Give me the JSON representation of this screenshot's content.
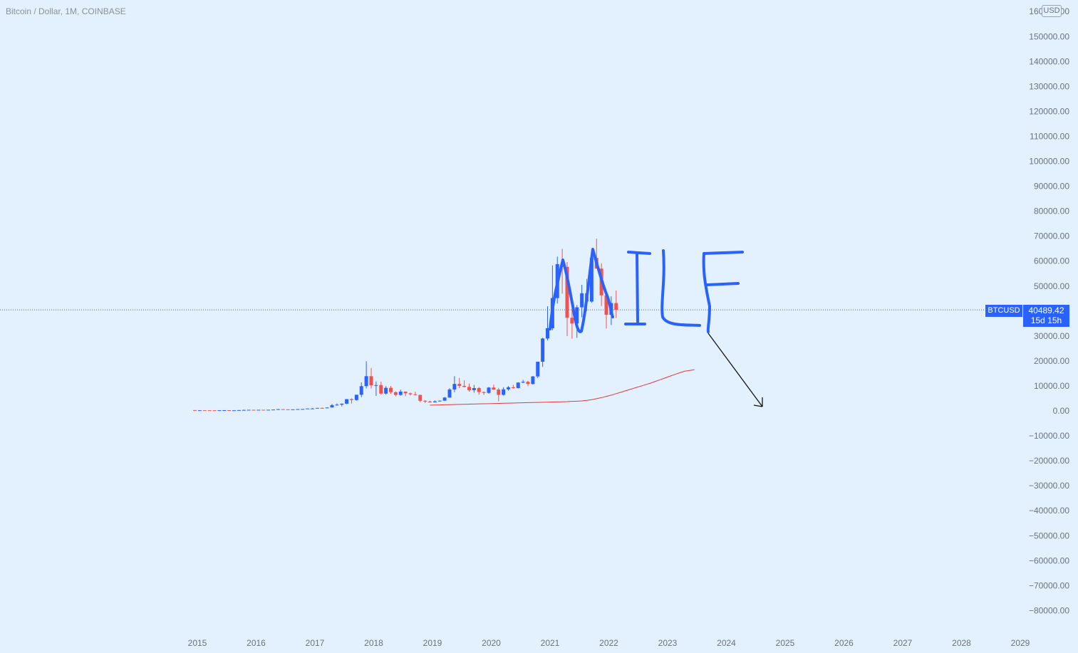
{
  "header": {
    "title": "Bitcoin / Dollar, 1M, COINBASE",
    "currency": "USD"
  },
  "price_tag": {
    "symbol": "BTCUSD",
    "price": "40489.42",
    "countdown": "15d 15h"
  },
  "colors": {
    "up": "#2962ff",
    "down": "#ef5350",
    "ma": "#e53935",
    "drawing": "#2962ff",
    "arrow": "#111111",
    "background": "#e3f0fe"
  },
  "chart_data": {
    "type": "candlestick",
    "title": "Bitcoin / Dollar, 1M, COINBASE",
    "currency": "USD",
    "y_tick_labels": [
      "160000.00",
      "150000.00",
      "140000.00",
      "130000.00",
      "120000.00",
      "110000.00",
      "100000.00",
      "90000.00",
      "80000.00",
      "70000.00",
      "60000.00",
      "50000.00",
      "40000.00",
      "30000.00",
      "20000.00",
      "10000.00",
      "0.00",
      "−10000.00",
      "−20000.00",
      "−30000.00",
      "−40000.00",
      "−50000.00",
      "−60000.00",
      "−70000.00",
      "−80000.00"
    ],
    "x_tick_labels": [
      "2015",
      "2016",
      "2017",
      "2018",
      "2019",
      "2020",
      "2021",
      "2022",
      "2023",
      "2024",
      "2025",
      "2026",
      "2027",
      "2028",
      "2029"
    ],
    "ylim": [
      -89000,
      161000
    ],
    "last_price": 40489.42,
    "series": [
      {
        "name": "BTCUSD",
        "start": "2015-01",
        "ohlc": [
          [
            315,
            320,
            200,
            218
          ],
          [
            218,
            260,
            210,
            254
          ],
          [
            254,
            300,
            240,
            244
          ],
          [
            244,
            260,
            220,
            236
          ],
          [
            236,
            245,
            225,
            230
          ],
          [
            230,
            265,
            220,
            263
          ],
          [
            263,
            315,
            255,
            284
          ],
          [
            284,
            285,
            210,
            230
          ],
          [
            230,
            245,
            225,
            236
          ],
          [
            236,
            330,
            235,
            314
          ],
          [
            314,
            495,
            310,
            378
          ],
          [
            378,
            465,
            355,
            430
          ],
          [
            430,
            460,
            350,
            368
          ],
          [
            368,
            440,
            365,
            437
          ],
          [
            437,
            425,
            400,
            416
          ],
          [
            416,
            466,
            415,
            448
          ],
          [
            448,
            535,
            440,
            531
          ],
          [
            531,
            780,
            520,
            673
          ],
          [
            673,
            675,
            580,
            624
          ],
          [
            624,
            615,
            550,
            575
          ],
          [
            575,
            610,
            595,
            609
          ],
          [
            609,
            740,
            605,
            700
          ],
          [
            700,
            745,
            690,
            742
          ],
          [
            742,
            970,
            740,
            963
          ],
          [
            963,
            1150,
            750,
            970
          ],
          [
            970,
            1200,
            950,
            1190
          ],
          [
            1190,
            1330,
            890,
            1080
          ],
          [
            1080,
            1430,
            1060,
            1350
          ],
          [
            1350,
            2780,
            1340,
            2300
          ],
          [
            2300,
            3000,
            2100,
            2480
          ],
          [
            2480,
            2950,
            1830,
            2880
          ],
          [
            2880,
            4750,
            2700,
            4700
          ],
          [
            4700,
            4980,
            2950,
            4340
          ],
          [
            4340,
            6470,
            4100,
            6450
          ],
          [
            6450,
            11400,
            5500,
            9900
          ],
          [
            9900,
            19900,
            9000,
            13900
          ],
          [
            13900,
            17200,
            9000,
            10220
          ],
          [
            10220,
            11800,
            6000,
            10330
          ],
          [
            10330,
            11700,
            6450,
            6930
          ],
          [
            6930,
            9950,
            6500,
            9240
          ],
          [
            9240,
            10000,
            6900,
            7500
          ],
          [
            7500,
            7800,
            5800,
            6390
          ],
          [
            6390,
            8500,
            6100,
            7730
          ],
          [
            7730,
            7770,
            5880,
            7030
          ],
          [
            7030,
            7400,
            6150,
            6630
          ],
          [
            6630,
            7650,
            6200,
            6370
          ],
          [
            6370,
            6550,
            3450,
            4040
          ],
          [
            4040,
            4300,
            3200,
            3740
          ],
          [
            3740,
            4050,
            3350,
            3440
          ],
          [
            3440,
            4200,
            3390,
            3810
          ],
          [
            3810,
            4100,
            3700,
            4100
          ],
          [
            4100,
            5600,
            4050,
            5320
          ],
          [
            5320,
            9100,
            5320,
            8570
          ],
          [
            8570,
            13900,
            7500,
            10800
          ],
          [
            10800,
            13200,
            9100,
            10000
          ],
          [
            10000,
            12300,
            9400,
            9600
          ],
          [
            9600,
            10950,
            7700,
            8300
          ],
          [
            8300,
            10400,
            7300,
            9150
          ],
          [
            9150,
            9500,
            6500,
            7550
          ],
          [
            7550,
            7750,
            6430,
            7200
          ],
          [
            7200,
            9600,
            6850,
            9350
          ],
          [
            9350,
            10500,
            8450,
            8550
          ],
          [
            8550,
            9200,
            3850,
            6420
          ],
          [
            6420,
            9450,
            6150,
            8630
          ],
          [
            8630,
            10000,
            8100,
            9450
          ],
          [
            9450,
            10400,
            8900,
            9140
          ],
          [
            9140,
            11500,
            9000,
            11350
          ],
          [
            11350,
            12470,
            11100,
            11650
          ],
          [
            11650,
            12050,
            9870,
            10780
          ],
          [
            10780,
            14000,
            10550,
            13800
          ],
          [
            13800,
            19500,
            13200,
            19700
          ],
          [
            19700,
            29300,
            17600,
            29000
          ],
          [
            29000,
            41900,
            28200,
            33100
          ],
          [
            33100,
            58300,
            32300,
            45200
          ],
          [
            45200,
            61800,
            43000,
            58800
          ],
          [
            58800,
            64900,
            47000,
            57700
          ],
          [
            57700,
            59600,
            30000,
            37300
          ],
          [
            37300,
            41300,
            28900,
            35000
          ],
          [
            35000,
            42400,
            29300,
            41500
          ],
          [
            41500,
            50500,
            37500,
            47100
          ],
          [
            47100,
            52900,
            40000,
            43800
          ],
          [
            43800,
            62000,
            43300,
            61300
          ],
          [
            61300,
            69000,
            58800,
            57000
          ],
          [
            57000,
            59100,
            42000,
            46300
          ],
          [
            46300,
            48000,
            33000,
            38500
          ],
          [
            38500,
            45900,
            34400,
            43200
          ],
          [
            43200,
            48200,
            37200,
            40489
          ]
        ]
      },
      {
        "name": "MA",
        "start": "2019-01",
        "values": [
          2300,
          2350,
          2400,
          2450,
          2500,
          2550,
          2600,
          2650,
          2700,
          2750,
          2800,
          2850,
          2900,
          2950,
          3000,
          3050,
          3100,
          3150,
          3200,
          3250,
          3300,
          3350,
          3400,
          3450,
          3500,
          3550,
          3600,
          3650,
          3700,
          3800,
          3900,
          4000,
          4200,
          4500,
          4900,
          5300,
          5800,
          6300,
          6900,
          7500,
          8100,
          8700,
          9300,
          9900,
          10500,
          11100,
          11800,
          12500,
          13200,
          13900,
          14600,
          15300,
          15900,
          16200,
          16500
        ]
      }
    ],
    "annotations": [
      {
        "type": "freehand_text",
        "text": "MILF",
        "color": "#2962ff"
      },
      {
        "type": "arrow",
        "direction": "down-right",
        "color": "#111111"
      }
    ]
  }
}
